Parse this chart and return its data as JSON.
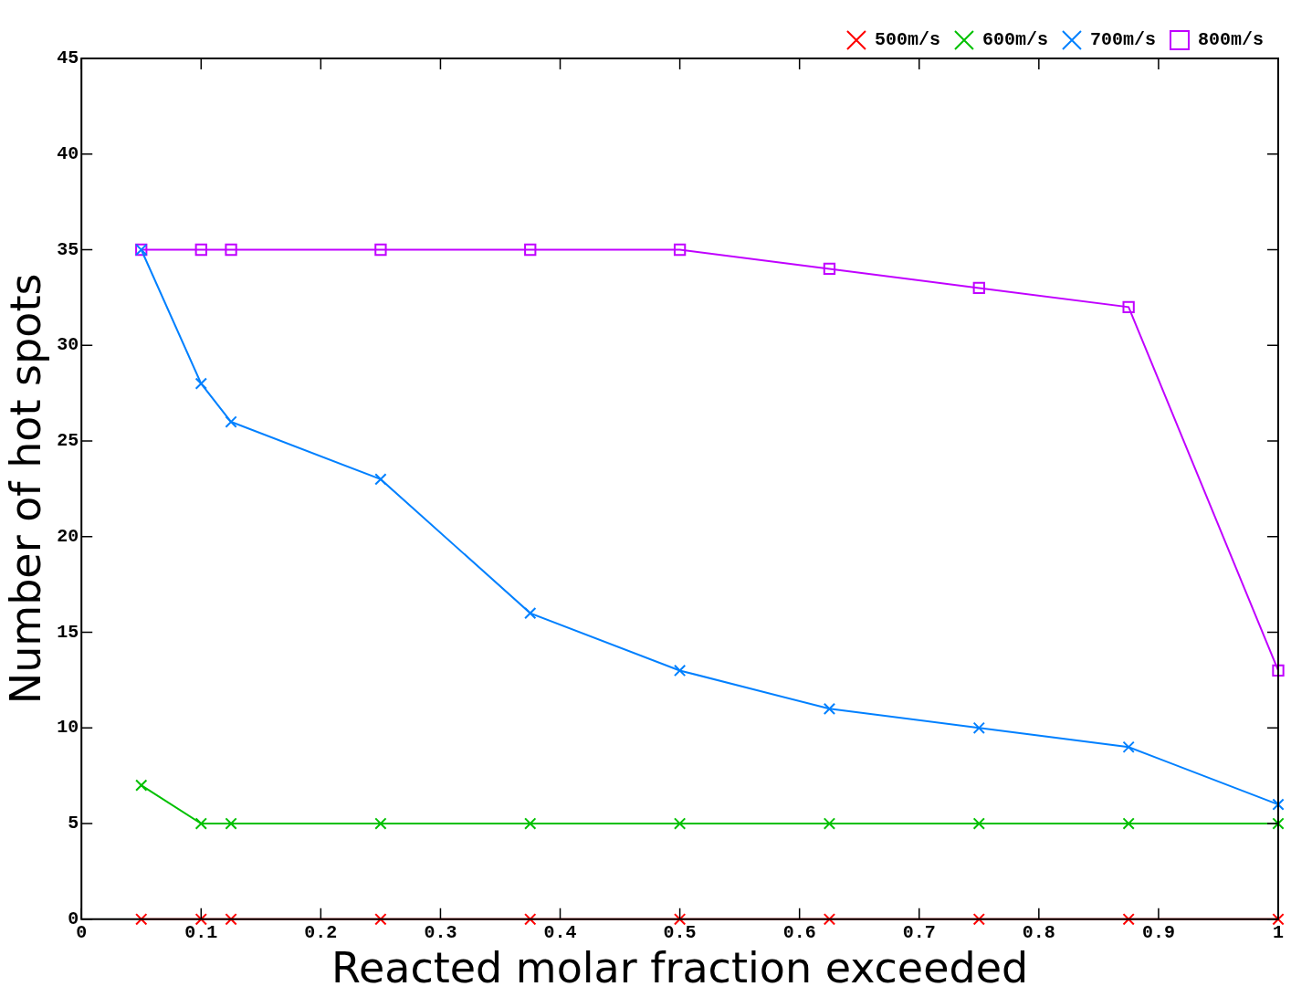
{
  "chart_data": {
    "type": "line",
    "xlabel": "Reacted molar fraction exceeded",
    "ylabel": "Number of hot spots",
    "x": [
      0.05,
      0.1,
      0.125,
      0.25,
      0.375,
      0.5,
      0.625,
      0.75,
      0.875,
      1
    ],
    "series": [
      {
        "name": "500m/s",
        "color": "#ff0000",
        "marker": "cross",
        "values": [
          0,
          0,
          0,
          0,
          0,
          0,
          0,
          0,
          0,
          0
        ]
      },
      {
        "name": "600m/s",
        "color": "#00c000",
        "marker": "cross",
        "values": [
          7,
          5,
          5,
          5,
          5,
          5,
          5,
          5,
          5,
          5
        ]
      },
      {
        "name": "700m/s",
        "color": "#0080ff",
        "marker": "cross",
        "values": [
          35,
          28,
          26,
          23,
          16,
          13,
          11,
          10,
          9,
          6
        ]
      },
      {
        "name": "800m/s",
        "color": "#c000ff",
        "marker": "square",
        "values": [
          35,
          35,
          35,
          35,
          35,
          35,
          34,
          33,
          32,
          13
        ]
      }
    ],
    "xlim": [
      0,
      1
    ],
    "xticks": [
      0,
      0.1,
      0.2,
      0.3,
      0.4,
      0.5,
      0.6,
      0.7,
      0.8,
      0.9,
      1
    ],
    "ylim": [
      0,
      45
    ],
    "yticks": [
      0,
      5,
      10,
      15,
      20,
      25,
      30,
      35,
      40,
      45
    ],
    "legend": "top right",
    "grid": false,
    "line_style": "solid"
  }
}
